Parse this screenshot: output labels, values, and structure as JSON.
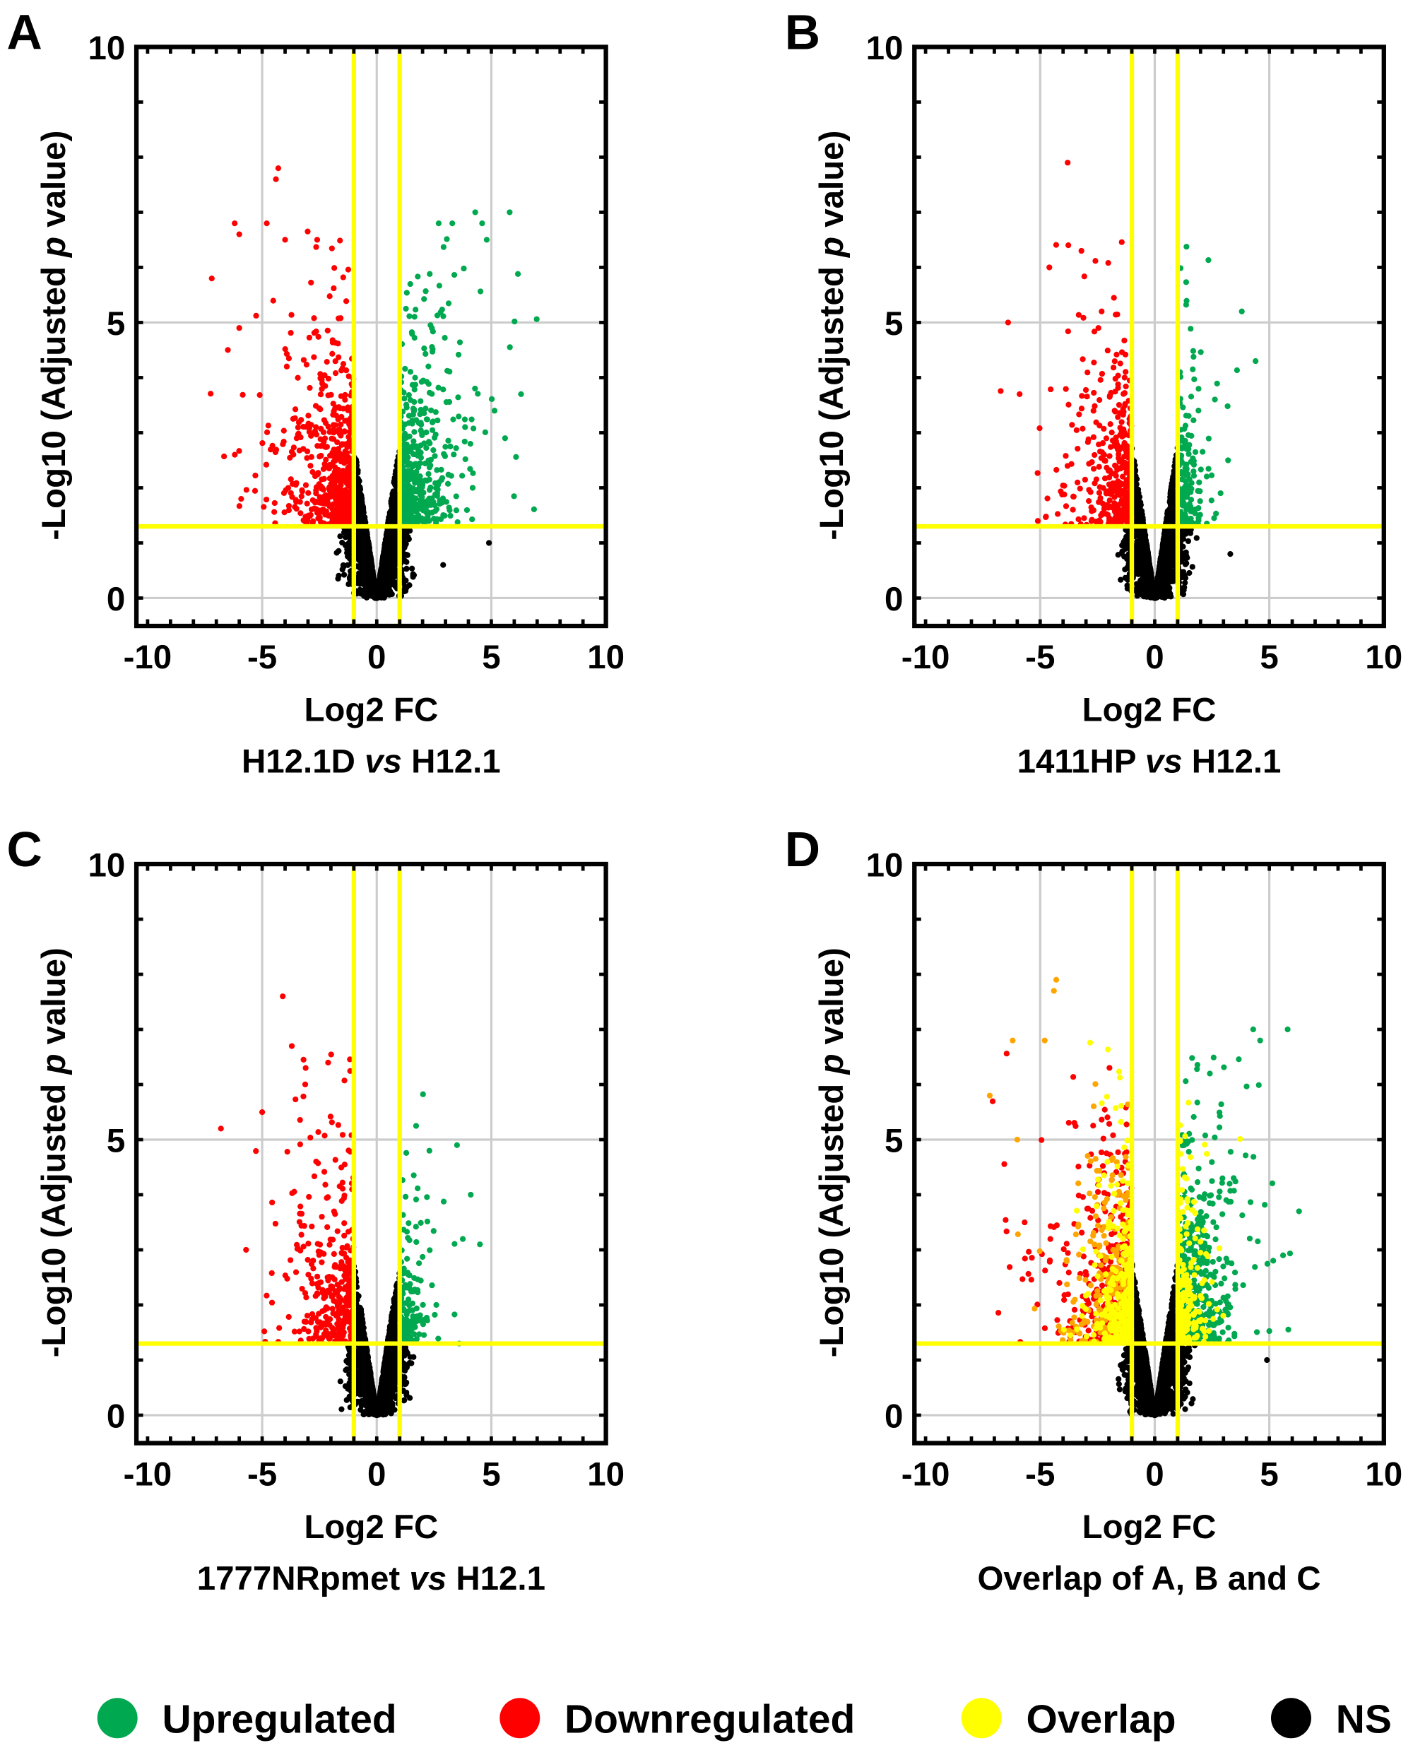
{
  "colors": {
    "up": "#00a84f",
    "down": "#ff0000",
    "overlap": "#ffff00",
    "overlap_down": "#ffa500",
    "ns": "#000000",
    "threshold": "#ffff00",
    "grid": "#cccccc"
  },
  "legend": [
    {
      "label": "Upregulated",
      "color": "#00a84f"
    },
    {
      "label": "Downregulated",
      "color": "#ff0000"
    },
    {
      "label": "Overlap",
      "color": "#ffff00"
    },
    {
      "label": "NS",
      "color": "#000000"
    }
  ],
  "chart_data": [
    {
      "panel": "A",
      "type": "scatter",
      "xlabel": "Log2 FC",
      "subtitle_pre": "H12.1D ",
      "subtitle_italic": "vs",
      "subtitle_post": " H12.1",
      "ylabel_pre": "-Log10 (Adjusted ",
      "ylabel_italic": "p",
      "ylabel_post": " value)",
      "xlim": [
        -10,
        10
      ],
      "ylim": [
        0,
        10
      ],
      "xticks": [
        "-10",
        "-5",
        "0",
        "5",
        "10"
      ],
      "yticks": [
        "0",
        "5",
        "10"
      ],
      "fc_threshold": 1,
      "p_threshold": 1.3,
      "counts": {
        "ns": 2600,
        "up": 520,
        "down": 640,
        "overlap": 0,
        "overlap_down": 0
      },
      "spread": {
        "up": 1.1,
        "down": 1.4
      },
      "notable_points": [
        [
          -4.3,
          7.8
        ],
        [
          -4.4,
          7.6
        ],
        [
          -6.2,
          6.8
        ],
        [
          -4.8,
          6.8
        ],
        [
          -6.0,
          6.6
        ],
        [
          -4.0,
          6.5
        ],
        [
          -2.6,
          6.5
        ],
        [
          -7.2,
          5.8
        ],
        [
          -6.0,
          4.9
        ],
        [
          -6.5,
          4.5
        ],
        [
          4.3,
          7.0
        ],
        [
          5.8,
          7.0
        ],
        [
          4.6,
          6.8
        ],
        [
          4.8,
          6.5
        ],
        [
          2.7,
          6.8
        ],
        [
          3.3,
          6.8
        ],
        [
          6.3,
          3.7
        ],
        [
          5.6,
          2.9
        ],
        [
          4.9,
          1.0
        ],
        [
          2.9,
          0.6
        ]
      ]
    },
    {
      "panel": "B",
      "type": "scatter",
      "xlabel": "Log2 FC",
      "subtitle_pre": "1411HP ",
      "subtitle_italic": "vs",
      "subtitle_post": " H12.1",
      "ylabel_pre": "-Log10 (Adjusted ",
      "ylabel_italic": "p",
      "ylabel_post": " value)",
      "xlim": [
        -10,
        10
      ],
      "ylim": [
        0,
        10
      ],
      "xticks": [
        "-10",
        "-5",
        "0",
        "5",
        "10"
      ],
      "yticks": [
        "0",
        "5",
        "10"
      ],
      "fc_threshold": 1,
      "p_threshold": 1.3,
      "counts": {
        "ns": 2400,
        "up": 160,
        "down": 380,
        "overlap": 0,
        "overlap_down": 0
      },
      "spread": {
        "up": 0.7,
        "down": 1.1
      },
      "notable_points": [
        [
          -3.8,
          7.9
        ],
        [
          -3.2,
          6.3
        ],
        [
          -4.6,
          6.0
        ],
        [
          -6.4,
          5.0
        ],
        [
          -5.9,
          3.7
        ],
        [
          -5.1,
          1.4
        ],
        [
          3.8,
          5.2
        ],
        [
          4.4,
          4.3
        ],
        [
          3.2,
          2.5
        ],
        [
          3.3,
          0.8
        ]
      ]
    },
    {
      "panel": "C",
      "type": "scatter",
      "xlabel": "Log2 FC",
      "subtitle_pre": "1777NRpmet ",
      "subtitle_italic": "vs",
      "subtitle_post": " H12.1",
      "ylabel_pre": "-Log10 (Adjusted ",
      "ylabel_italic": "p",
      "ylabel_post": " value)",
      "xlim": [
        -10,
        10
      ],
      "ylim": [
        0,
        10
      ],
      "xticks": [
        "-10",
        "-5",
        "0",
        "5",
        "10"
      ],
      "yticks": [
        "0",
        "5",
        "10"
      ],
      "fc_threshold": 1,
      "p_threshold": 1.3,
      "counts": {
        "ns": 2400,
        "up": 140,
        "down": 360,
        "overlap": 0,
        "overlap_down": 0
      },
      "spread": {
        "up": 0.7,
        "down": 1.2
      },
      "notable_points": [
        [
          -4.1,
          7.6
        ],
        [
          -3.1,
          6.3
        ],
        [
          -6.8,
          5.2
        ],
        [
          -5.0,
          5.5
        ],
        [
          3.5,
          4.9
        ],
        [
          2.3,
          4.8
        ],
        [
          4.5,
          3.1
        ],
        [
          4.1,
          4.0
        ],
        [
          3.6,
          1.3
        ]
      ]
    },
    {
      "panel": "D",
      "type": "scatter",
      "xlabel": "Log2 FC",
      "subtitle_pre": "Overlap of A, B and  C",
      "subtitle_italic": "",
      "subtitle_post": "",
      "ylabel_pre": "-Log10 (Adjusted ",
      "ylabel_italic": "p",
      "ylabel_post": " value)",
      "xlim": [
        -10,
        10
      ],
      "ylim": [
        0,
        10
      ],
      "xticks": [
        "-10",
        "-5",
        "0",
        "5",
        "10"
      ],
      "yticks": [
        "0",
        "5",
        "10"
      ],
      "fc_threshold": 1,
      "p_threshold": 1.3,
      "counts": {
        "ns": 2700,
        "up": 560,
        "down": 420,
        "overlap": 450,
        "overlap_down": 380
      },
      "spread": {
        "up": 1.1,
        "down": 1.4
      },
      "notable_points": [
        [
          -4.3,
          7.9
        ],
        [
          -4.4,
          7.7
        ],
        [
          -6.2,
          6.8
        ],
        [
          -4.8,
          6.8
        ],
        [
          -7.2,
          5.8
        ],
        [
          -6.0,
          5.0
        ],
        [
          4.3,
          7.0
        ],
        [
          5.8,
          7.0
        ],
        [
          4.6,
          6.8
        ],
        [
          6.3,
          3.7
        ],
        [
          5.6,
          2.9
        ],
        [
          4.9,
          1.0
        ]
      ]
    }
  ]
}
